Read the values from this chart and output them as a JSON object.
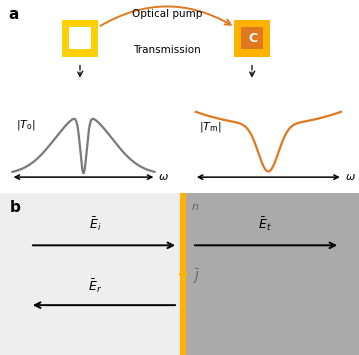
{
  "fig_width": 3.59,
  "fig_height": 3.55,
  "dpi": 100,
  "bg_color": "#ffffff",
  "label_a": "a",
  "label_b": "b",
  "optical_pump_text": "Optical pump",
  "transmission_text": "Transmission",
  "omega_label": "ω",
  "gray_color": "#7a7a7a",
  "orange_color": "#E07820",
  "gold_outer": "#FFD000",
  "gold_inner": "#E8A000",
  "srr_right_outer": "#FFB300",
  "srr_right_inner": "#E07820",
  "gray_bg": "#aaaaaa",
  "light_gray_bg": "#eeeeee",
  "interface_color": "#FFB300",
  "n_color": "#666666",
  "J_color": "#FFB300"
}
